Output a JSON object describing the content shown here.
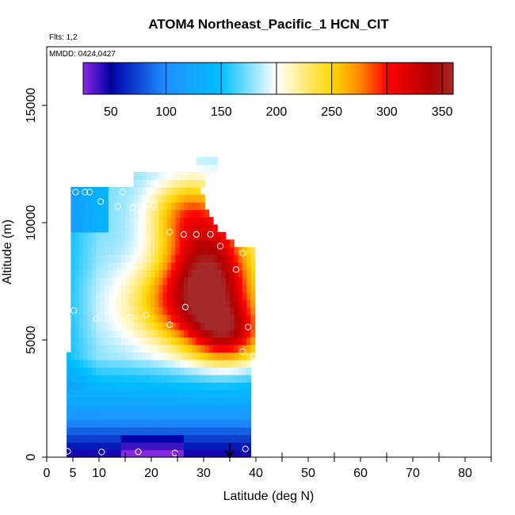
{
  "chart_data": {
    "type": "heatmap",
    "title": "ATOM4 Northeast_Pacific_1 HCN_CIT",
    "subtitle_flights": "Flts: 1,2",
    "subtitle_dates": "MMDD: 0424,0427",
    "xlabel": "Latitude (deg N)",
    "ylabel": "Altitude (m)",
    "xlim": [
      0,
      85
    ],
    "ylim": [
      0,
      17500
    ],
    "x_ticks": [
      0,
      5,
      10,
      20,
      30,
      40,
      50,
      60,
      70,
      80
    ],
    "x_minor_ticks": [
      15,
      25,
      35,
      45,
      55,
      65,
      75,
      85
    ],
    "y_ticks": [
      0,
      5000,
      10000,
      15000
    ],
    "colorbar": {
      "range": [
        25,
        360
      ],
      "ticks": [
        50,
        100,
        150,
        200,
        250,
        300,
        350
      ],
      "stops": [
        {
          "v": 25,
          "c": "#8a2be2"
        },
        {
          "v": 50,
          "c": "#0000a8"
        },
        {
          "v": 100,
          "c": "#1e90ff"
        },
        {
          "v": 150,
          "c": "#00bfff"
        },
        {
          "v": 200,
          "c": "#ffffff"
        },
        {
          "v": 250,
          "c": "#ffd700"
        },
        {
          "v": 275,
          "c": "#ff8c00"
        },
        {
          "v": 300,
          "c": "#ff0000"
        },
        {
          "v": 340,
          "c": "#b00000"
        },
        {
          "v": 360,
          "c": "#a52a2a"
        }
      ]
    },
    "colors": {
      "border": "#000000",
      "marker": "#ffffff",
      "background": "#ffffff"
    },
    "field": {
      "lat_range": [
        4,
        40
      ],
      "alt_range": [
        0,
        12500
      ],
      "grid_step_lat": 0.8,
      "grid_step_alt": 320
    },
    "observations": [
      {
        "lat": 4,
        "alt": 250
      },
      {
        "lat": 10.5,
        "alt": 220
      },
      {
        "lat": 17.5,
        "alt": 230
      },
      {
        "lat": 24.5,
        "alt": 180
      },
      {
        "lat": 38,
        "alt": 350
      },
      {
        "lat": 4,
        "alt": 5850
      },
      {
        "lat": 5.2,
        "alt": 6250
      },
      {
        "lat": 9.5,
        "alt": 5900
      },
      {
        "lat": 16,
        "alt": 5950
      },
      {
        "lat": 19,
        "alt": 6050
      },
      {
        "lat": 23.5,
        "alt": 5650
      },
      {
        "lat": 26.5,
        "alt": 6400
      },
      {
        "lat": 37.5,
        "alt": 4500
      },
      {
        "lat": 38.5,
        "alt": 5550
      },
      {
        "lat": 39.5,
        "alt": 4300
      },
      {
        "lat": 5.5,
        "alt": 11300
      },
      {
        "lat": 7.3,
        "alt": 11300
      },
      {
        "lat": 8.2,
        "alt": 11300
      },
      {
        "lat": 10.3,
        "alt": 10900
      },
      {
        "lat": 13.6,
        "alt": 10700
      },
      {
        "lat": 14.5,
        "alt": 11300
      },
      {
        "lat": 16.5,
        "alt": 10650
      },
      {
        "lat": 18.6,
        "alt": 10650
      },
      {
        "lat": 20.5,
        "alt": 10750
      },
      {
        "lat": 23.5,
        "alt": 9600
      },
      {
        "lat": 26.2,
        "alt": 9500
      },
      {
        "lat": 28.6,
        "alt": 9500
      },
      {
        "lat": 31.3,
        "alt": 9500
      },
      {
        "lat": 33.2,
        "alt": 9000
      },
      {
        "lat": 36.2,
        "alt": 8000
      },
      {
        "lat": 37.5,
        "alt": 8700
      },
      {
        "lat": 29.5,
        "alt": 12300
      },
      {
        "lat": 31.7,
        "alt": 12300
      }
    ],
    "arrow": {
      "lat": 35,
      "alt_from": 600,
      "alt_to": 0
    }
  }
}
